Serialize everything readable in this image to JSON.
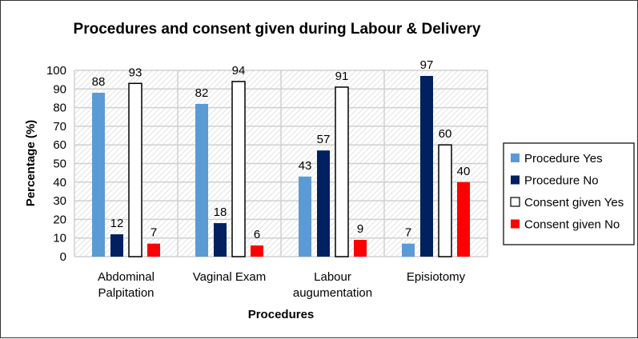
{
  "chart_data": {
    "type": "bar",
    "title": "Procedures and consent given during Labour &  Delivery",
    "xlabel": "Procedures",
    "ylabel": "Percentage (%)",
    "ylim": [
      0,
      100
    ],
    "yticks": [
      0,
      10,
      20,
      30,
      40,
      50,
      60,
      70,
      80,
      90,
      100
    ],
    "grid": true,
    "legend_position": "right",
    "categories": [
      [
        "Abdominal",
        "Palpitation"
      ],
      [
        "Vaginal Exam"
      ],
      [
        "Labour",
        "augumentation"
      ],
      [
        "Episiotomy"
      ]
    ],
    "series": [
      {
        "name": "Procedure Yes",
        "color": "#5b9bd5",
        "outline": false,
        "values": [
          88,
          82,
          43,
          7
        ]
      },
      {
        "name": "Procedure No",
        "color": "#002060",
        "outline": false,
        "values": [
          12,
          18,
          57,
          97
        ]
      },
      {
        "name": "Consent given Yes",
        "color": "#ffffff",
        "outline": true,
        "values": [
          93,
          94,
          91,
          60
        ]
      },
      {
        "name": "Consent given No",
        "color": "#ff0000",
        "outline": false,
        "values": [
          7,
          6,
          9,
          40
        ]
      }
    ]
  }
}
